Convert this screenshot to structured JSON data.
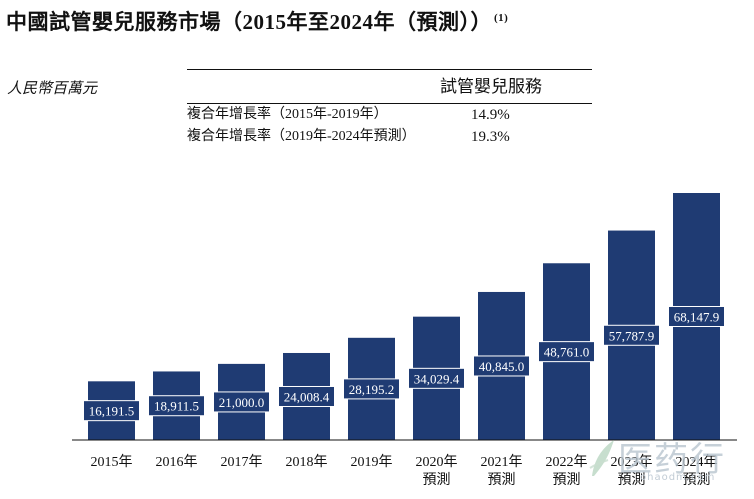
{
  "title": "中國試管嬰兒服務市場（2015年至2024年（預測））",
  "title_note": "(1)",
  "unit": "人民幣百萬元",
  "cagr_table": {
    "header": "試管嬰兒服務",
    "rows": [
      {
        "label": "複合年增長率（2015年-2019年）",
        "value": "14.9%"
      },
      {
        "label": "複合年增長率（2019年-2024年預測）",
        "value": "19.3%"
      }
    ]
  },
  "chart_data": {
    "type": "bar",
    "title": "中國試管嬰兒服務市場（2015年至2024年（預測））",
    "ylabel": "人民幣百萬元",
    "categories": [
      "2015年",
      "2016年",
      "2017年",
      "2018年",
      "2019年",
      "2020年\n預測",
      "2021年\n預測",
      "2022年\n預測",
      "2023年\n預測",
      "2024年\n預測"
    ],
    "values": [
      16191.5,
      18911.5,
      21000.0,
      24008.4,
      28195.2,
      34029.4,
      40845.0,
      48761.0,
      57787.9,
      68147.9
    ],
    "value_labels": [
      "16,191.5",
      "18,911.5",
      "21,000.0",
      "24,008.4",
      "28,195.2",
      "34,029.4",
      "40,845.0",
      "48,761.0",
      "57,787.9",
      "68,147.9"
    ],
    "ylim": [
      0,
      68147.9
    ],
    "grid": false,
    "legend": "none",
    "bar_color": "#1f3b73"
  },
  "watermark": {
    "name": "医药行",
    "url": "ohaodm.com",
    "color": "#b9c5cf"
  }
}
